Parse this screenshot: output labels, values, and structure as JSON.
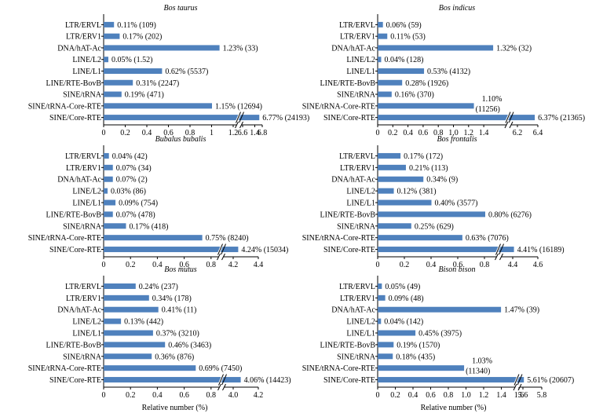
{
  "colors": {
    "bar": "#4f81bd",
    "axis": "#000000",
    "text": "#000000"
  },
  "chart_data": [
    {
      "type": "bar",
      "title": "Bos taurus",
      "categories": [
        "LTR/ERVL",
        "LTR/ERV1",
        "DNA/hAT-Ac",
        "LINE/L2",
        "LINE/L1",
        "LINE/RTE-BovB",
        "SINE/tRNA",
        "SINE/tRNA-Core-RTE",
        "SINE/Core-RTE"
      ],
      "values": [
        0.11,
        0.17,
        1.23,
        0.05,
        0.62,
        0.31,
        0.19,
        1.15,
        6.77
      ],
      "labels": [
        "0.11% (109)",
        "0.17% (202)",
        "1.23% (33)",
        "0.05% (1.52)",
        "0.62% (5537)",
        "0.31% (2247)",
        "0.19% (471)",
        "1.15% (12694)",
        "6.77% (24193)"
      ],
      "xticks": [
        "0",
        "0.2",
        "0.4",
        "0.6",
        "0.8",
        "1",
        "1.2",
        "1.4",
        "6.6",
        "6.8"
      ],
      "xlim_lower": [
        0,
        1.4
      ],
      "xlim_upper": [
        6.6,
        6.8
      ],
      "axis_break": true,
      "xlabel": ""
    },
    {
      "type": "bar",
      "title": "Bos indicus",
      "categories": [
        "LTR/ERVL",
        "LTR/ERV1",
        "DNA/hAT-Ac",
        "LINE/L2",
        "LINE/L1",
        "LINE/RTE-BovB",
        "SINE/tRNA",
        "SINE/tRNA-Core-RTE",
        "SINE/Core-RTE"
      ],
      "values": [
        0.06,
        0.11,
        1.32,
        0.04,
        0.53,
        0.28,
        0.16,
        1.1,
        6.37
      ],
      "labels": [
        "0.06% (59)",
        "0.11% (53)",
        "1.32% (32)",
        "0.04% (128)",
        "0.53% (4132)",
        "0.28% (1926)",
        "0.16% (370)",
        "1.10%|(11256)",
        "6.37% (21365)"
      ],
      "xticks": [
        "0",
        "0.2",
        "0.4",
        "0.6",
        "0.8",
        "1.0",
        "1.2",
        "1.4",
        "6.2",
        "6.4"
      ],
      "xlim_lower": [
        0,
        1.4
      ],
      "xlim_upper": [
        6.2,
        6.4
      ],
      "axis_break": true,
      "xlabel": ""
    },
    {
      "type": "bar",
      "title": "Bubalus bubalis",
      "categories": [
        "LTR/ERVL",
        "LTR/ERV1",
        "DNA/hAT-Ac",
        "LINE/L2",
        "LINE/L1",
        "LINE/RTE-BovB",
        "SINE/tRNA",
        "SINE/tRNA-Core-RTE",
        "SINE/Core-RTE"
      ],
      "values": [
        0.04,
        0.07,
        0.07,
        0.03,
        0.09,
        0.07,
        0.17,
        0.75,
        4.24
      ],
      "labels": [
        "0.04% (42)",
        "0.07% (34)",
        "0.07% (2)",
        "0.03% (86)",
        "0.09% (754)",
        "0.07% (478)",
        "0.17% (418)",
        "0.75% (8240)",
        "4.24% (15034)"
      ],
      "xticks": [
        "0",
        "0.2",
        "0.4",
        "0.6",
        "0.8",
        "4.2",
        "4.4"
      ],
      "xlim_lower": [
        0,
        0.8
      ],
      "xlim_upper": [
        4.2,
        4.4
      ],
      "axis_break": true,
      "xlabel": ""
    },
    {
      "type": "bar",
      "title": "Bos frontalis",
      "categories": [
        "LTR/ERVL",
        "LTR/ERV1",
        "DNA/hAT-Ac",
        "LINE/L2",
        "LINE/L1",
        "LINE/RTE-BovB",
        "SINE/tRNA",
        "SINE/tRNA-Core-RTE",
        "SINE/Core-RTE"
      ],
      "values": [
        0.17,
        0.21,
        0.34,
        0.12,
        0.4,
        0.8,
        0.25,
        0.63,
        4.41
      ],
      "labels": [
        "0.17% (172)",
        "0.21% (113)",
        "0.34% (9)",
        "0.12% (381)",
        "0.40% (3577)",
        "0.80% (6276)",
        "0.25% (629)",
        "0.63% (7076)",
        "4.41% (16189)"
      ],
      "xticks": [
        "0",
        "0.2",
        "0.4",
        "0.6",
        "0.8",
        "4.4",
        "4.6"
      ],
      "xlim_lower": [
        0,
        0.8
      ],
      "xlim_upper": [
        4.4,
        4.6
      ],
      "axis_break": true,
      "xlabel": ""
    },
    {
      "type": "bar",
      "title": "Bos mutus",
      "categories": [
        "LTR/ERVL",
        "LTR/ERV1",
        "DNA/hAT-Ac",
        "LINE/L2",
        "LINE/L1",
        "LINE/RTE-BovB",
        "SINE/tRNA",
        "SINE/tRNA-Core-RTE",
        "SINE/Core-RTE"
      ],
      "values": [
        0.24,
        0.34,
        0.41,
        0.13,
        0.37,
        0.46,
        0.36,
        0.69,
        4.06
      ],
      "labels": [
        "0.24% (237)",
        "0.34% (178)",
        "0.41% (11)",
        "0.13% (442)",
        "0.37% (3210)",
        "0.46% (3463)",
        "0.36% (876)",
        "0.69% (7450)",
        "4.06% (14423)"
      ],
      "xticks": [
        "0",
        "0.2",
        "0.4",
        "0.6",
        "0.8",
        "4.0",
        "4.2"
      ],
      "xlim_lower": [
        0,
        0.8
      ],
      "xlim_upper": [
        4.0,
        4.2
      ],
      "axis_break": true,
      "xlabel": "Relative number (%)"
    },
    {
      "type": "bar",
      "title": "Bison bison",
      "categories": [
        "LTR/ERVL",
        "LTR/ERV1",
        "DNA/hAT-Ac",
        "LINE/L2",
        "LINE/L1",
        "LINE/RTE-BovB",
        "SINE/tRNA",
        "SINE/tRNA-Core-RTE",
        "SINE/Core-RTE"
      ],
      "values": [
        0.05,
        0.09,
        1.47,
        0.04,
        0.45,
        0.19,
        0.18,
        1.03,
        5.61
      ],
      "labels": [
        "0.05% (49)",
        "0.09% (48)",
        "1.47% (39)",
        "0.04% (142)",
        "0.45% (3975)",
        "0.19% (1570)",
        "0.18% (435)",
        "1.03%|(11340)",
        "5.61% (20607)"
      ],
      "xticks": [
        "0",
        "0.2",
        "0.4",
        "0.6",
        "0.8",
        "1.0",
        "1.2",
        "1.4",
        "1.6",
        "5.6",
        "5.8"
      ],
      "xlim_lower": [
        0,
        1.6
      ],
      "xlim_upper": [
        5.6,
        5.8
      ],
      "axis_break": true,
      "xlabel": "Relative number (%)"
    }
  ]
}
